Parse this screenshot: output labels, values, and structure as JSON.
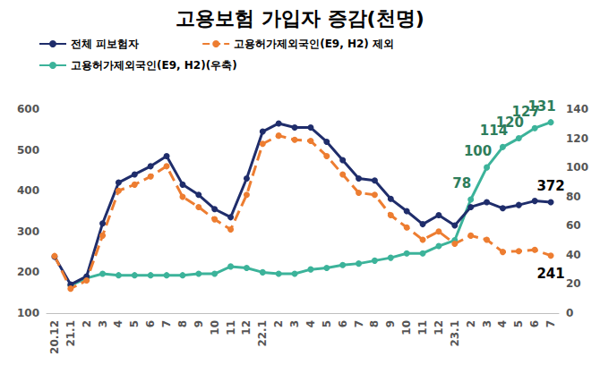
{
  "chart_data": {
    "type": "line",
    "title": "고용보험 가입자 증감(천명)",
    "categories": [
      "20.12",
      "21.1",
      "2",
      "3",
      "4",
      "5",
      "6",
      "7",
      "8",
      "9",
      "10",
      "11",
      "12",
      "22.1",
      "2",
      "3",
      "4",
      "5",
      "6",
      "7",
      "8",
      "9",
      "10",
      "11",
      "12",
      "23.1",
      "2",
      "3",
      "4",
      "5",
      "6",
      "7"
    ],
    "series": [
      {
        "name": "전체 피보험자",
        "color": "#1f2d6b",
        "marker": "circle",
        "line_style": "solid",
        "values": [
          238,
          170,
          190,
          320,
          420,
          440,
          460,
          485,
          415,
          390,
          355,
          335,
          430,
          545,
          565,
          555,
          555,
          520,
          475,
          430,
          425,
          380,
          350,
          318,
          340,
          315,
          360,
          372,
          357,
          365,
          375,
          372
        ],
        "value_labels": [
          null,
          null,
          null,
          null,
          null,
          null,
          null,
          null,
          null,
          null,
          null,
          null,
          null,
          null,
          null,
          null,
          null,
          null,
          null,
          null,
          null,
          null,
          null,
          null,
          null,
          null,
          null,
          null,
          null,
          null,
          null,
          "372"
        ]
      },
      {
        "name": "고용허가제외국인(E9, H2) 제외",
        "color": "#ed7d31",
        "marker": "circle",
        "line_style": "dashed",
        "values": [
          240,
          160,
          180,
          290,
          400,
          415,
          435,
          460,
          385,
          360,
          330,
          305,
          390,
          515,
          535,
          525,
          522,
          485,
          440,
          395,
          390,
          340,
          310,
          280,
          300,
          270,
          290,
          280,
          250,
          252,
          255,
          241
        ],
        "value_labels": [
          null,
          null,
          null,
          null,
          null,
          null,
          null,
          null,
          null,
          null,
          null,
          null,
          null,
          null,
          null,
          null,
          null,
          null,
          null,
          null,
          null,
          null,
          null,
          null,
          null,
          null,
          null,
          null,
          null,
          null,
          null,
          "241"
        ]
      },
      {
        "name": "고용허가제외국인(E9, H2)(우축)",
        "color": "#3cb39a",
        "marker": "circle",
        "line_style": "solid",
        "axis": "y2",
        "values": [
          null,
          19,
          24,
          27,
          26,
          26,
          26,
          26,
          26,
          27,
          27,
          32,
          31,
          28,
          27,
          27,
          30,
          31,
          33,
          34,
          36,
          38,
          41,
          41,
          46,
          50,
          78,
          100,
          114,
          120,
          127,
          131
        ],
        "value_labels": [
          null,
          null,
          null,
          null,
          null,
          null,
          null,
          null,
          null,
          null,
          null,
          null,
          null,
          null,
          null,
          null,
          null,
          null,
          null,
          null,
          null,
          null,
          null,
          null,
          null,
          null,
          "78",
          "100",
          "114",
          "120",
          "127",
          "131"
        ]
      }
    ],
    "ylim": [
      100,
      600
    ],
    "yticks": [
      100,
      200,
      300,
      400,
      500,
      600
    ],
    "y2lim": [
      0,
      140
    ],
    "y2ticks": [
      0,
      20,
      40,
      60,
      80,
      100,
      120,
      140
    ],
    "grid": false,
    "legend": "top"
  }
}
